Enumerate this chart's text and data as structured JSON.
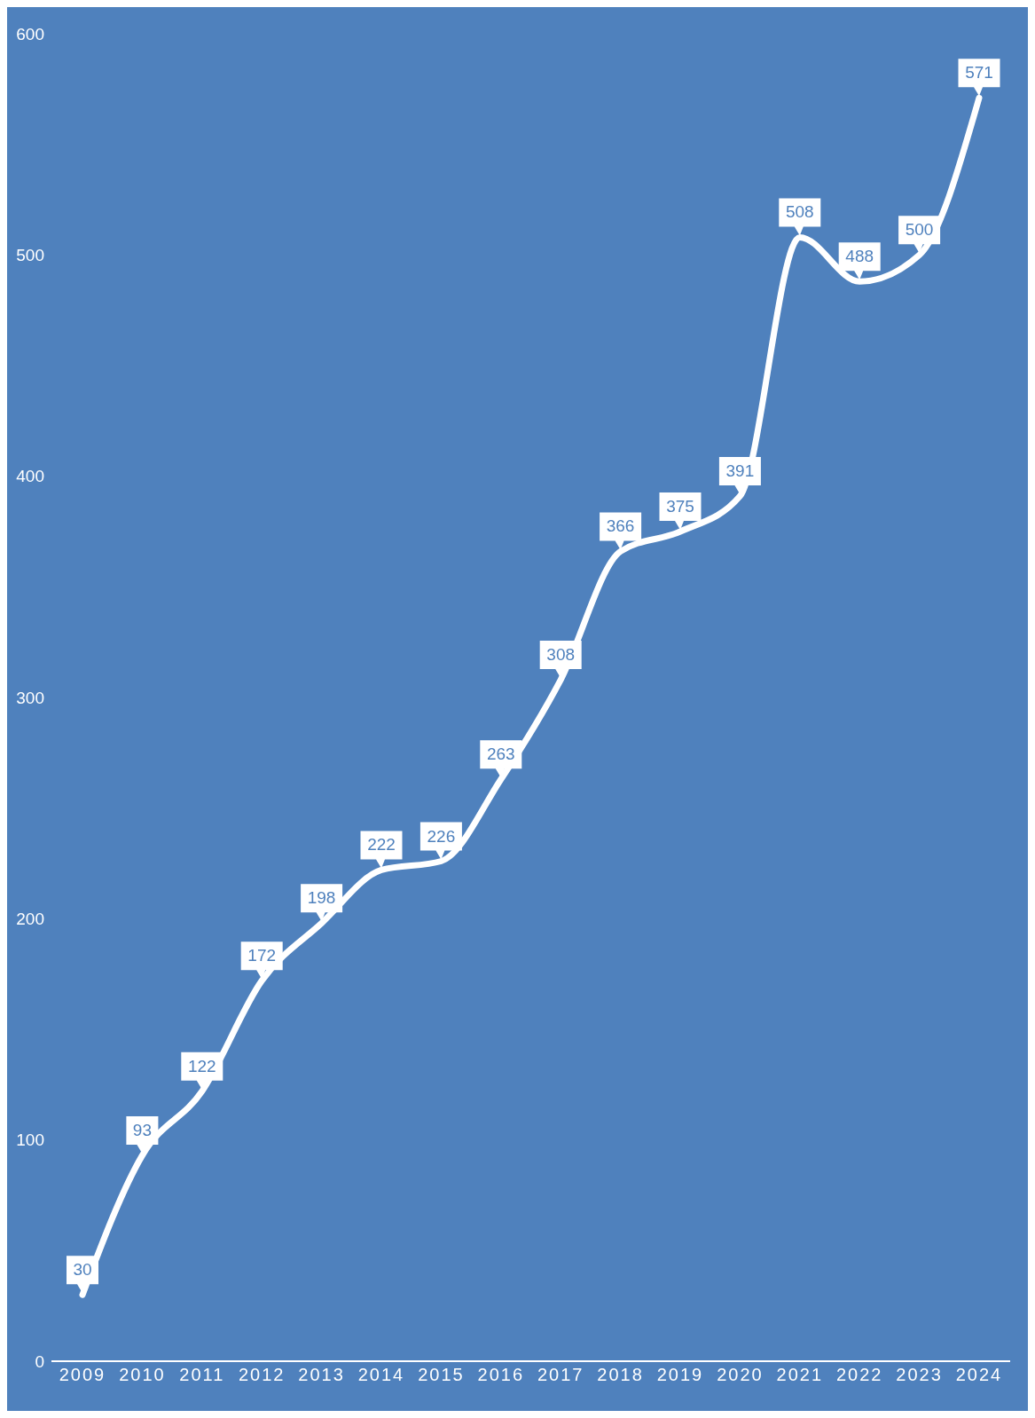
{
  "chart_data": {
    "type": "line",
    "categories": [
      "2009",
      "2010",
      "2011",
      "2012",
      "2013",
      "2014",
      "2015",
      "2016",
      "2017",
      "2018",
      "2019",
      "2020",
      "2021",
      "2022",
      "2023",
      "2024"
    ],
    "series": [
      {
        "color": "#ffffff",
        "values": [
          30,
          93,
          122,
          172,
          198,
          222,
          226,
          263,
          308,
          366,
          375,
          391,
          508,
          488,
          500,
          571
        ]
      }
    ],
    "ylim": [
      0,
      600
    ],
    "yticks": [
      0,
      100,
      200,
      300,
      400,
      500,
      600
    ],
    "grid": false,
    "legend": false,
    "marker": "none",
    "line_style": "solid",
    "data_labels": true
  }
}
